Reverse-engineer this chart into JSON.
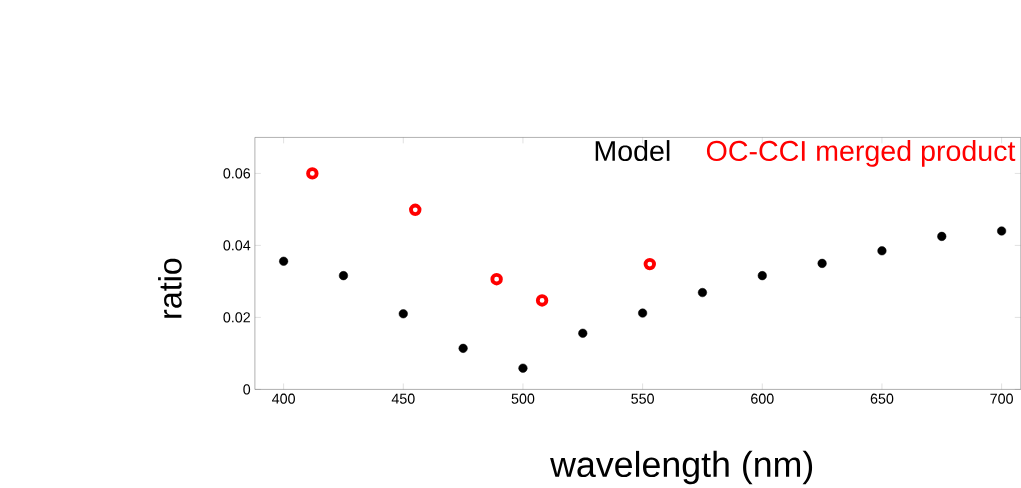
{
  "chart_data": {
    "type": "scatter",
    "xlabel": "wavelength (nm)",
    "ylabel": "ratio",
    "xlim": [
      388,
      708
    ],
    "ylim": [
      0,
      0.07
    ],
    "xticks": [
      400,
      450,
      500,
      550,
      600,
      650,
      700
    ],
    "yticks": [
      0,
      0.02,
      0.04,
      0.06
    ],
    "grid": false,
    "legend": "top right",
    "marker": "circle",
    "series": [
      {
        "name": "Model",
        "color": "#000000",
        "x": [
          400,
          425,
          450,
          475,
          500,
          525,
          550,
          575,
          600,
          625,
          650,
          675,
          700
        ],
        "values": [
          0.0356,
          0.0316,
          0.021,
          0.0114,
          0.0059,
          0.0156,
          0.0212,
          0.0269,
          0.0316,
          0.035,
          0.0385,
          0.0425,
          0.044
        ]
      },
      {
        "name": "OC-CCI merged product",
        "color": "#ff0000",
        "x": [
          412,
          455,
          489,
          508,
          553
        ],
        "values": [
          0.06,
          0.0499,
          0.0306,
          0.0247,
          0.0348
        ]
      }
    ]
  }
}
